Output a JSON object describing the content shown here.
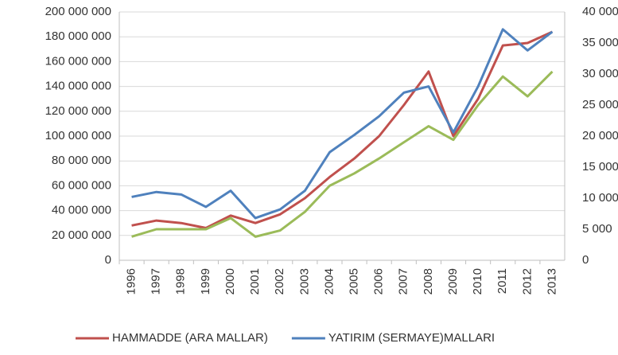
{
  "chart_data": {
    "type": "line",
    "categories": [
      "1996",
      "1997",
      "1998",
      "1999",
      "2000",
      "2001",
      "2002",
      "2003",
      "2004",
      "2005",
      "2006",
      "2007",
      "2008",
      "2009",
      "2010",
      "2011",
      "2012",
      "2013"
    ],
    "series": [
      {
        "name": "HAMMADDE (ARA MALLAR)",
        "color": "#c0504d",
        "values": [
          28000000,
          32000000,
          30000000,
          26000000,
          36000000,
          30000000,
          37000000,
          50000000,
          67000000,
          82000000,
          100000000,
          125000000,
          152000000,
          100000000,
          130000000,
          173000000,
          175000000,
          184000000
        ]
      },
      {
        "name": "YATIRIM (SERMAYE)MALLARI",
        "color": "#4f81bd",
        "axis": "y2",
        "values": [
          10200,
          11000,
          10600,
          8600,
          11200,
          6800,
          8200,
          11200,
          17400,
          20200,
          23200,
          27000,
          28000,
          20600,
          28000,
          37200,
          33800,
          36800
        ]
      },
      {
        "color": "#9bbb59",
        "axis": "y2",
        "values": [
          3800,
          5000,
          5000,
          5000,
          6800,
          3800,
          4800,
          7800,
          12000,
          14000,
          16400,
          19000,
          21600,
          19400,
          25000,
          29600,
          26400,
          30400
        ]
      }
    ],
    "ylim": [
      0,
      200000000
    ],
    "yticks": [
      0,
      {
        "value": 20000000,
        "label": "20 000 000"
      },
      {
        "value": 40000000,
        "label": "40 000 000"
      },
      {
        "value": 60000000,
        "label": "60 000 000"
      },
      {
        "value": 80000000,
        "label": "80 000 000"
      },
      {
        "value": 100000000,
        "label": "100 000 000"
      },
      {
        "value": 120000000,
        "label": "120 000 000"
      },
      {
        "value": 140000000,
        "label": "140 000 000"
      },
      {
        "value": 160000000,
        "label": "160 000 000"
      },
      {
        "value": 180000000,
        "label": "180 000 000"
      },
      {
        "value": 200000000,
        "label": "200 000 000"
      }
    ],
    "y2lim": [
      0,
      40000
    ],
    "y2ticks": [
      0,
      {
        "value": 5000,
        "label": "5 000"
      },
      {
        "value": 10000,
        "label": "10 000"
      },
      {
        "value": 15000,
        "label": "15 000"
      },
      {
        "value": 20000,
        "label": "20 000"
      },
      {
        "value": 25000,
        "label": "25 000"
      },
      {
        "value": 30000,
        "label": "30 000"
      },
      {
        "value": 35000,
        "label": "35 000"
      },
      {
        "value": 40000,
        "label": "40 000"
      }
    ],
    "grid": true
  }
}
